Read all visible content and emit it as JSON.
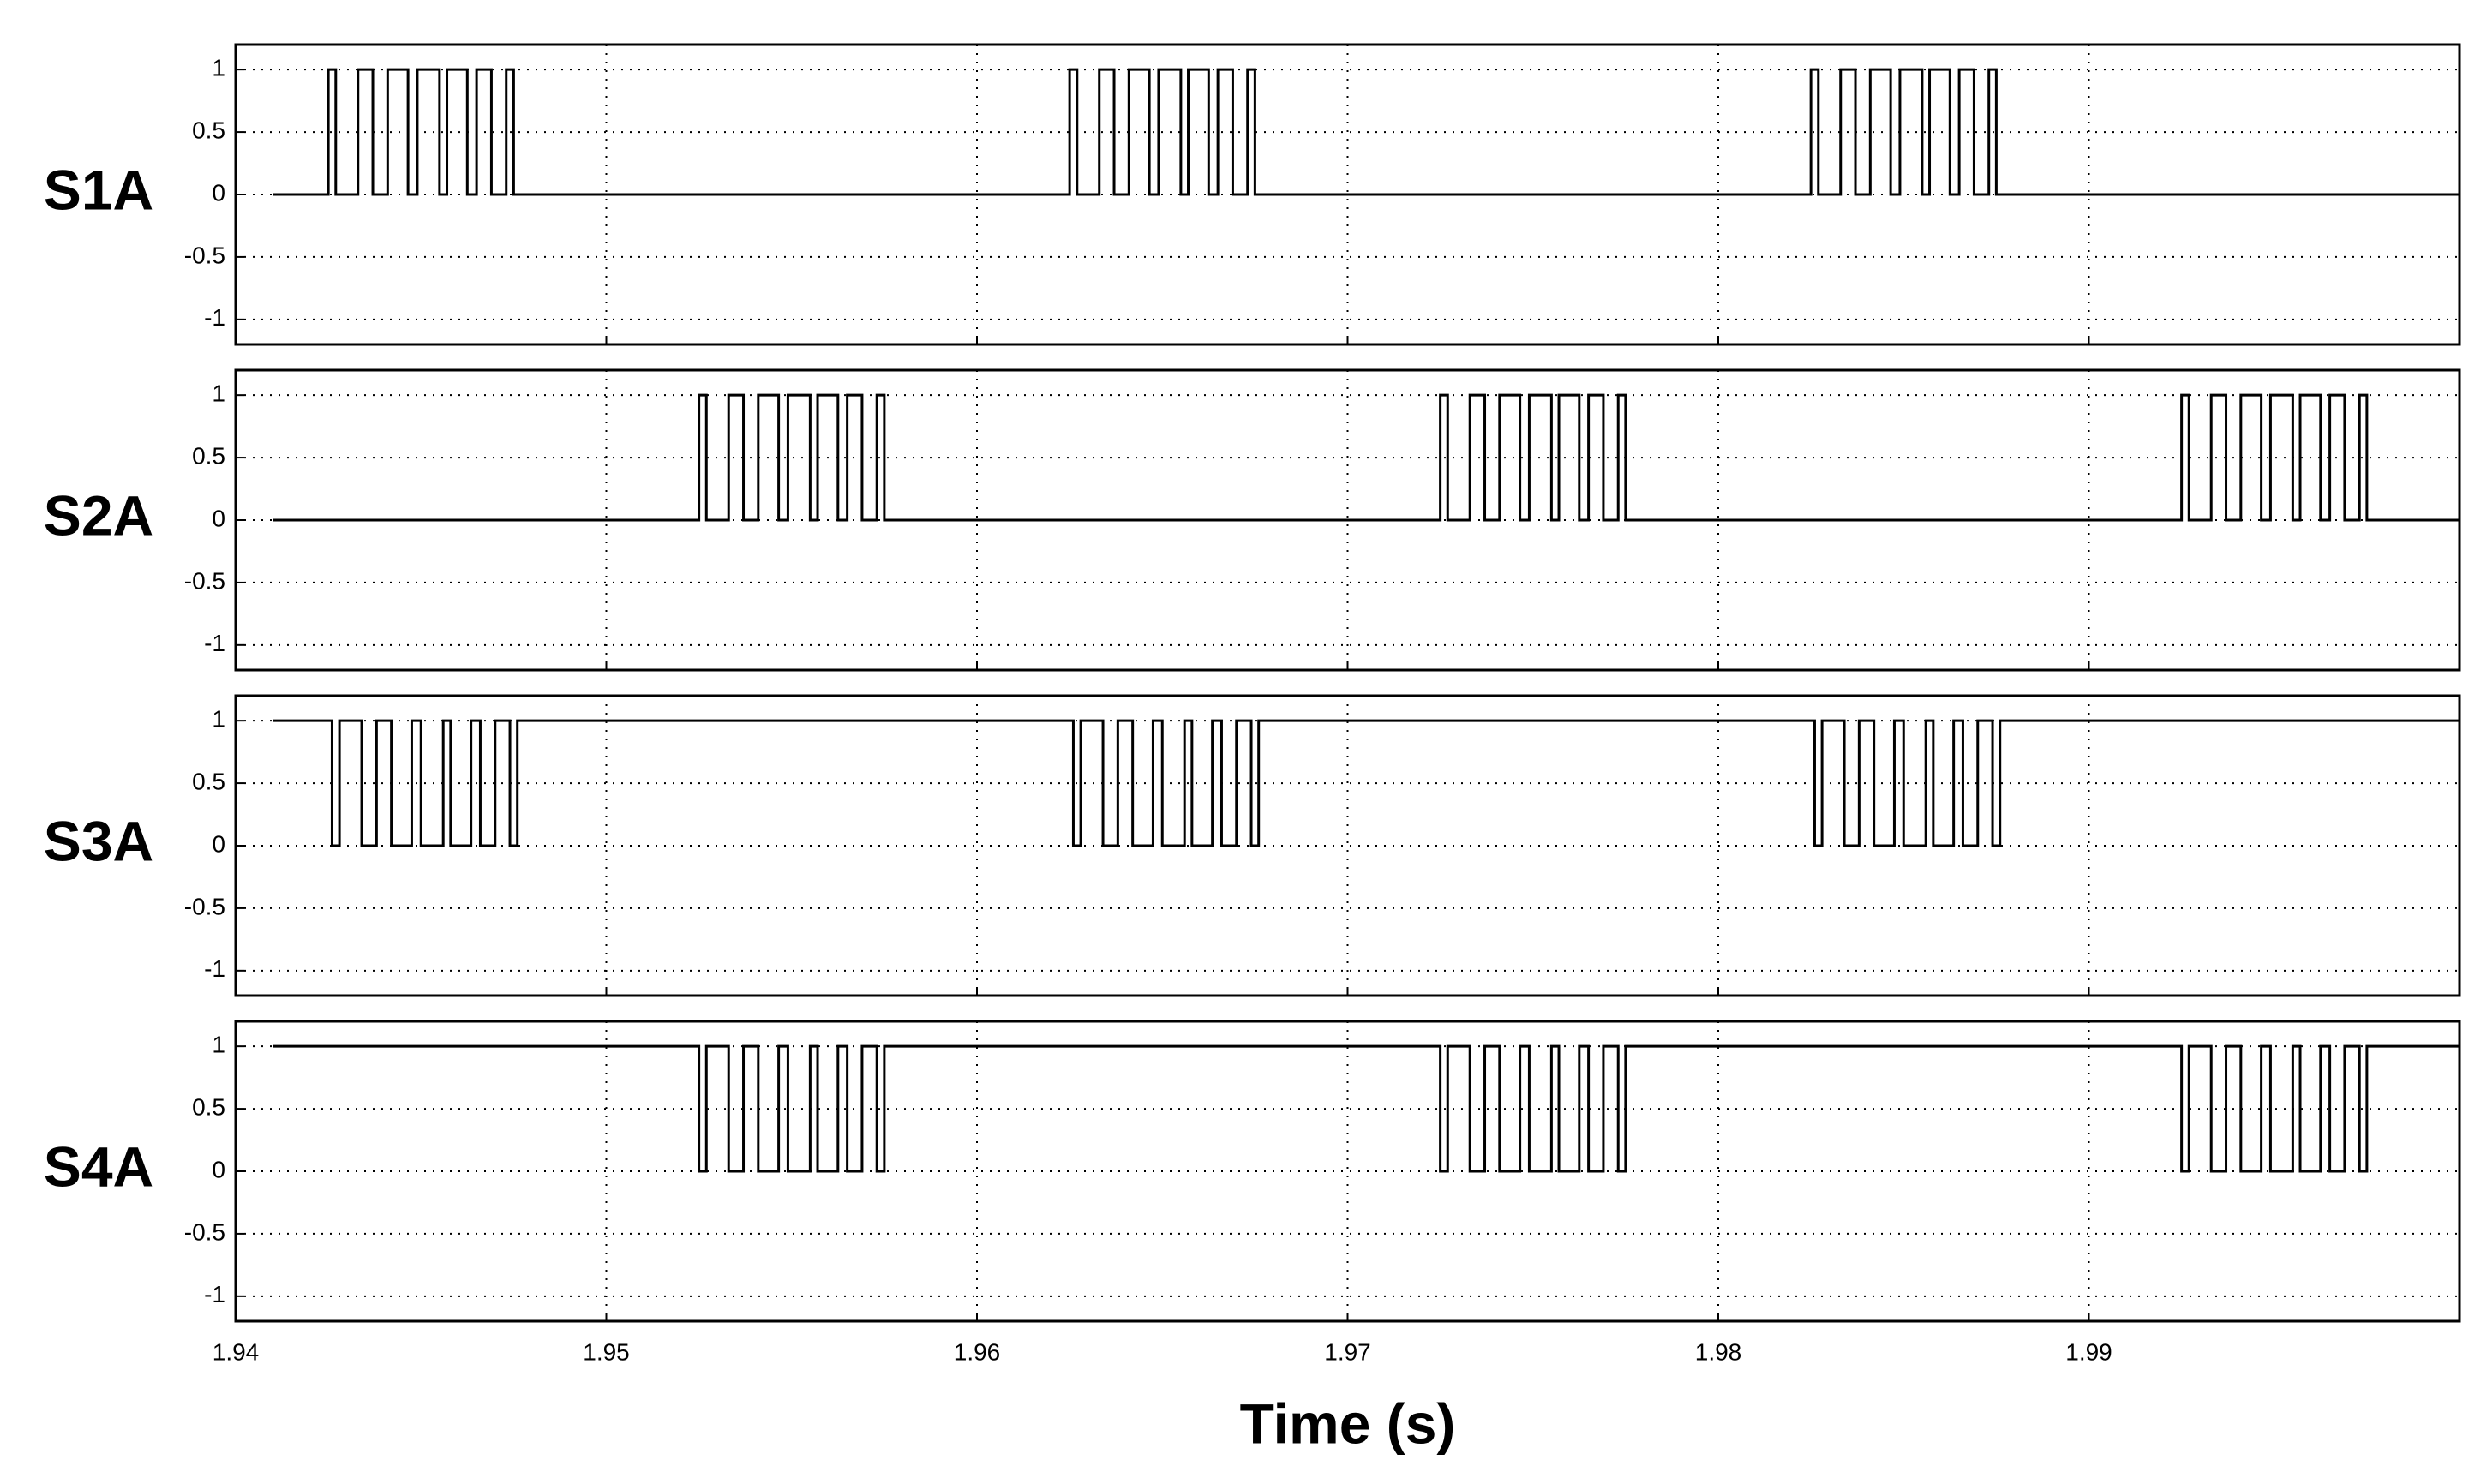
{
  "chart_data": [
    {
      "type": "line",
      "ylabel": "S1A",
      "xlim": [
        1.94,
        2.0
      ],
      "xticks": [
        1.94,
        1.95,
        1.96,
        1.97,
        1.98,
        1.99
      ],
      "ylim": [
        -1.2,
        1.2
      ],
      "yticks": [
        1,
        0.5,
        0,
        -0.5,
        -1
      ],
      "grid": true,
      "series": [
        {
          "color": "#000000",
          "x": [
            1.941,
            1.9425,
            1.9425,
            1.9427,
            1.9427,
            1.9433,
            1.9433,
            1.9437,
            1.9437,
            1.9441,
            1.9441,
            1.94465,
            1.94465,
            1.9449,
            1.9449,
            1.9455,
            1.9455,
            1.9457,
            1.9457,
            1.94625,
            1.94625,
            1.9465,
            1.9465,
            1.9469,
            1.9469,
            1.9473,
            1.9473,
            1.9475,
            1.9475,
            1.9625,
            1.9625,
            1.9627,
            1.9627,
            1.9633,
            1.9633,
            1.9637,
            1.9637,
            1.9641,
            1.9641,
            1.96465,
            1.96465,
            1.9649,
            1.9649,
            1.9655,
            1.9655,
            1.9657,
            1.9657,
            1.96625,
            1.96625,
            1.9665,
            1.9665,
            1.9669,
            1.9669,
            1.9673,
            1.9673,
            1.9675,
            1.9675,
            1.9825,
            1.9825,
            1.9827,
            1.9827,
            1.9833,
            1.9833,
            1.9837,
            1.9837,
            1.9841,
            1.9841,
            1.98465,
            1.98465,
            1.9849,
            1.9849,
            1.9855,
            1.9855,
            1.9857,
            1.9857,
            1.98625,
            1.98625,
            1.9865,
            1.9865,
            1.9869,
            1.9869,
            1.9873,
            1.9873,
            1.9875,
            1.9875,
            2.0
          ],
          "values": [
            0,
            0,
            1,
            1,
            0,
            0,
            1,
            1,
            0,
            0,
            1,
            1,
            0,
            0,
            1,
            1,
            0,
            0,
            1,
            1,
            0,
            0,
            1,
            1,
            0,
            0,
            1,
            1,
            0,
            0,
            1,
            1,
            0,
            0,
            1,
            1,
            0,
            0,
            1,
            1,
            0,
            0,
            1,
            1,
            0,
            0,
            1,
            1,
            0,
            0,
            1,
            1,
            0,
            0,
            1,
            1,
            0,
            0,
            1,
            1,
            0,
            0,
            1,
            1,
            0,
            0,
            1,
            1,
            0,
            0,
            1,
            1,
            0,
            0,
            1,
            1,
            0,
            0,
            1,
            1,
            0,
            0,
            1,
            1,
            0,
            0
          ]
        }
      ]
    },
    {
      "type": "line",
      "ylabel": "S2A",
      "xlim": [
        1.94,
        2.0
      ],
      "xticks": [
        1.94,
        1.95,
        1.96,
        1.97,
        1.98,
        1.99
      ],
      "ylim": [
        -1.2,
        1.2
      ],
      "yticks": [
        1,
        0.5,
        0,
        -0.5,
        -1
      ],
      "grid": true,
      "series": [
        {
          "color": "#000000",
          "x": [
            1.941,
            1.9525,
            1.9525,
            1.9527,
            1.9527,
            1.9533,
            1.9533,
            1.9537,
            1.9537,
            1.9541,
            1.9541,
            1.95465,
            1.95465,
            1.9549,
            1.9549,
            1.9555,
            1.9555,
            1.9557,
            1.9557,
            1.95625,
            1.95625,
            1.9565,
            1.9565,
            1.9569,
            1.9569,
            1.9573,
            1.9573,
            1.9575,
            1.9575,
            1.9725,
            1.9725,
            1.9727,
            1.9727,
            1.9733,
            1.9733,
            1.9737,
            1.9737,
            1.9741,
            1.9741,
            1.97465,
            1.97465,
            1.9749,
            1.9749,
            1.9755,
            1.9755,
            1.9757,
            1.9757,
            1.97625,
            1.97625,
            1.9765,
            1.9765,
            1.9769,
            1.9769,
            1.9773,
            1.9773,
            1.9775,
            1.9775,
            1.9925,
            1.9925,
            1.9927,
            1.9927,
            1.9933,
            1.9933,
            1.9937,
            1.9937,
            1.9941,
            1.9941,
            1.99465,
            1.99465,
            1.9949,
            1.9949,
            1.9955,
            1.9955,
            1.9957,
            1.9957,
            1.99625,
            1.99625,
            1.9965,
            1.9965,
            1.9969,
            1.9969,
            1.9973,
            1.9973,
            1.9975,
            1.9975,
            2.0
          ],
          "values": [
            0,
            0,
            1,
            1,
            0,
            0,
            1,
            1,
            0,
            0,
            1,
            1,
            0,
            0,
            1,
            1,
            0,
            0,
            1,
            1,
            0,
            0,
            1,
            1,
            0,
            0,
            1,
            1,
            0,
            0,
            1,
            1,
            0,
            0,
            1,
            1,
            0,
            0,
            1,
            1,
            0,
            0,
            1,
            1,
            0,
            0,
            1,
            1,
            0,
            0,
            1,
            1,
            0,
            0,
            1,
            1,
            0,
            0,
            1,
            1,
            0,
            0,
            1,
            1,
            0,
            0,
            1,
            1,
            0,
            0,
            1,
            1,
            0,
            0,
            1,
            1,
            0,
            0,
            1,
            1,
            0,
            0,
            1,
            1,
            0,
            0
          ]
        }
      ]
    },
    {
      "type": "line",
      "ylabel": "S3A",
      "xlim": [
        1.94,
        2.0
      ],
      "xticks": [
        1.94,
        1.95,
        1.96,
        1.97,
        1.98,
        1.99
      ],
      "ylim": [
        -1.2,
        1.2
      ],
      "yticks": [
        1,
        0.5,
        0,
        -0.5,
        -1
      ],
      "grid": true,
      "series": [
        {
          "color": "#000000",
          "x": [
            1.941,
            1.9426,
            1.9426,
            1.9428,
            1.9428,
            1.9434,
            1.9434,
            1.9438,
            1.9438,
            1.9442,
            1.9442,
            1.94475,
            1.94475,
            1.945,
            1.945,
            1.9456,
            1.9456,
            1.9458,
            1.9458,
            1.94635,
            1.94635,
            1.9466,
            1.9466,
            1.947,
            1.947,
            1.9474,
            1.9474,
            1.9476,
            1.9476,
            1.9626,
            1.9626,
            1.9628,
            1.9628,
            1.9634,
            1.9634,
            1.9638,
            1.9638,
            1.9642,
            1.9642,
            1.96475,
            1.96475,
            1.965,
            1.965,
            1.9656,
            1.9656,
            1.9658,
            1.9658,
            1.96635,
            1.96635,
            1.9666,
            1.9666,
            1.967,
            1.967,
            1.9674,
            1.9674,
            1.9676,
            1.9676,
            1.9826,
            1.9826,
            1.9828,
            1.9828,
            1.9834,
            1.9834,
            1.9838,
            1.9838,
            1.9842,
            1.9842,
            1.98475,
            1.98475,
            1.985,
            1.985,
            1.9856,
            1.9856,
            1.9858,
            1.9858,
            1.98635,
            1.98635,
            1.9866,
            1.9866,
            1.987,
            1.987,
            1.9874,
            1.9874,
            1.9876,
            1.9876,
            2.0
          ],
          "values": [
            1,
            1,
            0,
            0,
            1,
            1,
            0,
            0,
            1,
            1,
            0,
            0,
            1,
            1,
            0,
            0,
            1,
            1,
            0,
            0,
            1,
            1,
            0,
            0,
            1,
            1,
            0,
            0,
            1,
            1,
            0,
            0,
            1,
            1,
            0,
            0,
            1,
            1,
            0,
            0,
            1,
            1,
            0,
            0,
            1,
            1,
            0,
            0,
            1,
            1,
            0,
            0,
            1,
            1,
            0,
            0,
            1,
            1,
            0,
            0,
            1,
            1,
            0,
            0,
            1,
            1,
            0,
            0,
            1,
            1,
            0,
            0,
            1,
            1,
            0,
            0,
            1,
            1,
            0,
            0,
            1,
            1,
            0,
            0,
            1,
            1
          ]
        }
      ]
    },
    {
      "type": "line",
      "ylabel": "S4A",
      "xlabel": "Time (s)",
      "xlim": [
        1.94,
        2.0
      ],
      "xticks": [
        1.94,
        1.95,
        1.96,
        1.97,
        1.98,
        1.99
      ],
      "ylim": [
        -1.2,
        1.2
      ],
      "yticks": [
        1,
        0.5,
        0,
        -0.5,
        -1
      ],
      "grid": true,
      "series": [
        {
          "color": "#000000",
          "x": [
            1.941,
            1.9525,
            1.9525,
            1.9527,
            1.9527,
            1.9533,
            1.9533,
            1.9537,
            1.9537,
            1.9541,
            1.9541,
            1.95465,
            1.95465,
            1.9549,
            1.9549,
            1.9555,
            1.9555,
            1.9557,
            1.9557,
            1.95625,
            1.95625,
            1.9565,
            1.9565,
            1.9569,
            1.9569,
            1.9573,
            1.9573,
            1.9575,
            1.9575,
            1.9725,
            1.9725,
            1.9727,
            1.9727,
            1.9733,
            1.9733,
            1.9737,
            1.9737,
            1.9741,
            1.9741,
            1.97465,
            1.97465,
            1.9749,
            1.9749,
            1.9755,
            1.9755,
            1.9757,
            1.9757,
            1.97625,
            1.97625,
            1.9765,
            1.9765,
            1.9769,
            1.9769,
            1.9773,
            1.9773,
            1.9775,
            1.9775,
            1.9925,
            1.9925,
            1.9927,
            1.9927,
            1.9933,
            1.9933,
            1.9937,
            1.9937,
            1.9941,
            1.9941,
            1.99465,
            1.99465,
            1.9949,
            1.9949,
            1.9955,
            1.9955,
            1.9957,
            1.9957,
            1.99625,
            1.99625,
            1.9965,
            1.9965,
            1.9969,
            1.9969,
            1.9973,
            1.9973,
            1.9975,
            1.9975,
            2.0
          ],
          "values": [
            1,
            1,
            0,
            0,
            1,
            1,
            0,
            0,
            1,
            1,
            0,
            0,
            1,
            1,
            0,
            0,
            1,
            1,
            0,
            0,
            1,
            1,
            0,
            0,
            1,
            1,
            0,
            0,
            1,
            1,
            0,
            0,
            1,
            1,
            0,
            0,
            1,
            1,
            0,
            0,
            1,
            1,
            0,
            0,
            1,
            1,
            0,
            0,
            1,
            1,
            0,
            0,
            1,
            1,
            0,
            0,
            1,
            1,
            0,
            0,
            1,
            1,
            0,
            0,
            1,
            1,
            0,
            0,
            1,
            1,
            0,
            0,
            1,
            1,
            0,
            0,
            1,
            1,
            0,
            0,
            1,
            1,
            0,
            0,
            1,
            1
          ]
        }
      ]
    }
  ]
}
